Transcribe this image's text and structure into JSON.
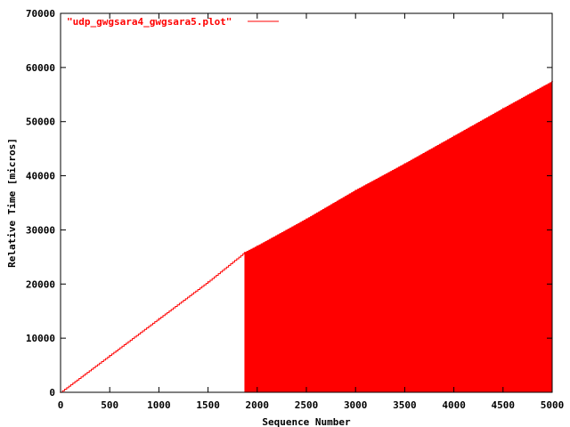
{
  "chart_data": {
    "type": "line",
    "title": "",
    "xlabel": "Sequence Number",
    "ylabel": "Relative Time [micros]",
    "xlim": [
      0,
      5000
    ],
    "ylim": [
      0,
      70000
    ],
    "x_ticks": [
      "0",
      "500",
      "1000",
      "1500",
      "2000",
      "2500",
      "3000",
      "3500",
      "4000",
      "4500",
      "5000"
    ],
    "y_ticks": [
      "0",
      "10000",
      "20000",
      "30000",
      "40000",
      "50000",
      "60000",
      "70000"
    ],
    "grid": false,
    "legend_position": "top-left",
    "series": [
      {
        "name": "\"udp_gwgsara4_gwgsara5.plot\"",
        "color": "#ff0000",
        "style": "steps",
        "x": [
          0,
          500,
          1000,
          1500,
          1870,
          2000,
          2500,
          3000,
          3500,
          4000,
          4500,
          5000
        ],
        "y": [
          0,
          6800,
          13600,
          20400,
          25800,
          27000,
          32000,
          37300,
          42200,
          47300,
          52400,
          57400
        ],
        "filled_region": {
          "x_start": 1870,
          "x_end": 5000,
          "y_floor": 0
        }
      }
    ]
  }
}
